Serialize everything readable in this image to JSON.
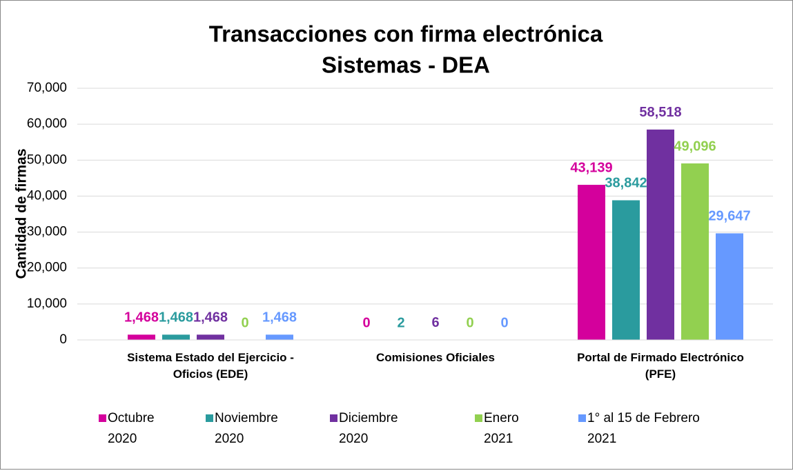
{
  "chart_data": {
    "type": "bar",
    "title": [
      "Transacciones con firma electrónica",
      "Sistemas - DEA"
    ],
    "y_label": "Cantidad de firmas",
    "categories": [
      "Sistema Estado del Ejercicio - Oficios (EDE)",
      "Comisiones Oficiales",
      "Portal de Firmado Electrónico (PFE)"
    ],
    "series": [
      {
        "name": "Octubre 2020",
        "color": "#d4009c",
        "values": [
          1468,
          0,
          43139
        ],
        "value_labels": [
          "1,468",
          "0",
          "43,139"
        ]
      },
      {
        "name": "Noviembre 2020",
        "color": "#2a9b9e",
        "values": [
          1468,
          2,
          38842
        ],
        "value_labels": [
          "1,468",
          "2",
          "38,842"
        ]
      },
      {
        "name": "Diciembre 2020",
        "color": "#7030a0",
        "values": [
          1468,
          6,
          58518
        ],
        "value_labels": [
          "1,468",
          "6",
          "58,518"
        ]
      },
      {
        "name": "Enero 2021",
        "color": "#92d050",
        "values": [
          0,
          0,
          49096
        ],
        "value_labels": [
          "0",
          "0",
          "49,096"
        ]
      },
      {
        "name": "1° al 15 de Febrero 2021",
        "color": "#6699ff",
        "values": [
          1468,
          0,
          29647
        ],
        "value_labels": [
          "1,468",
          "0",
          "29,647"
        ]
      }
    ],
    "ylim": [
      0,
      70000
    ],
    "yticks": [
      0,
      {
        "value": 10000,
        "label": "10,000"
      },
      {
        "value": 20000,
        "label": "20,000"
      },
      {
        "value": 30000,
        "label": "30,000"
      },
      {
        "value": 40000,
        "label": "40,000"
      },
      {
        "value": 50000,
        "label": "50,000"
      },
      {
        "value": 60000,
        "label": "60,000"
      },
      {
        "value": 70000,
        "label": "70,000"
      }
    ],
    "grid": true,
    "legend": "bottom"
  }
}
